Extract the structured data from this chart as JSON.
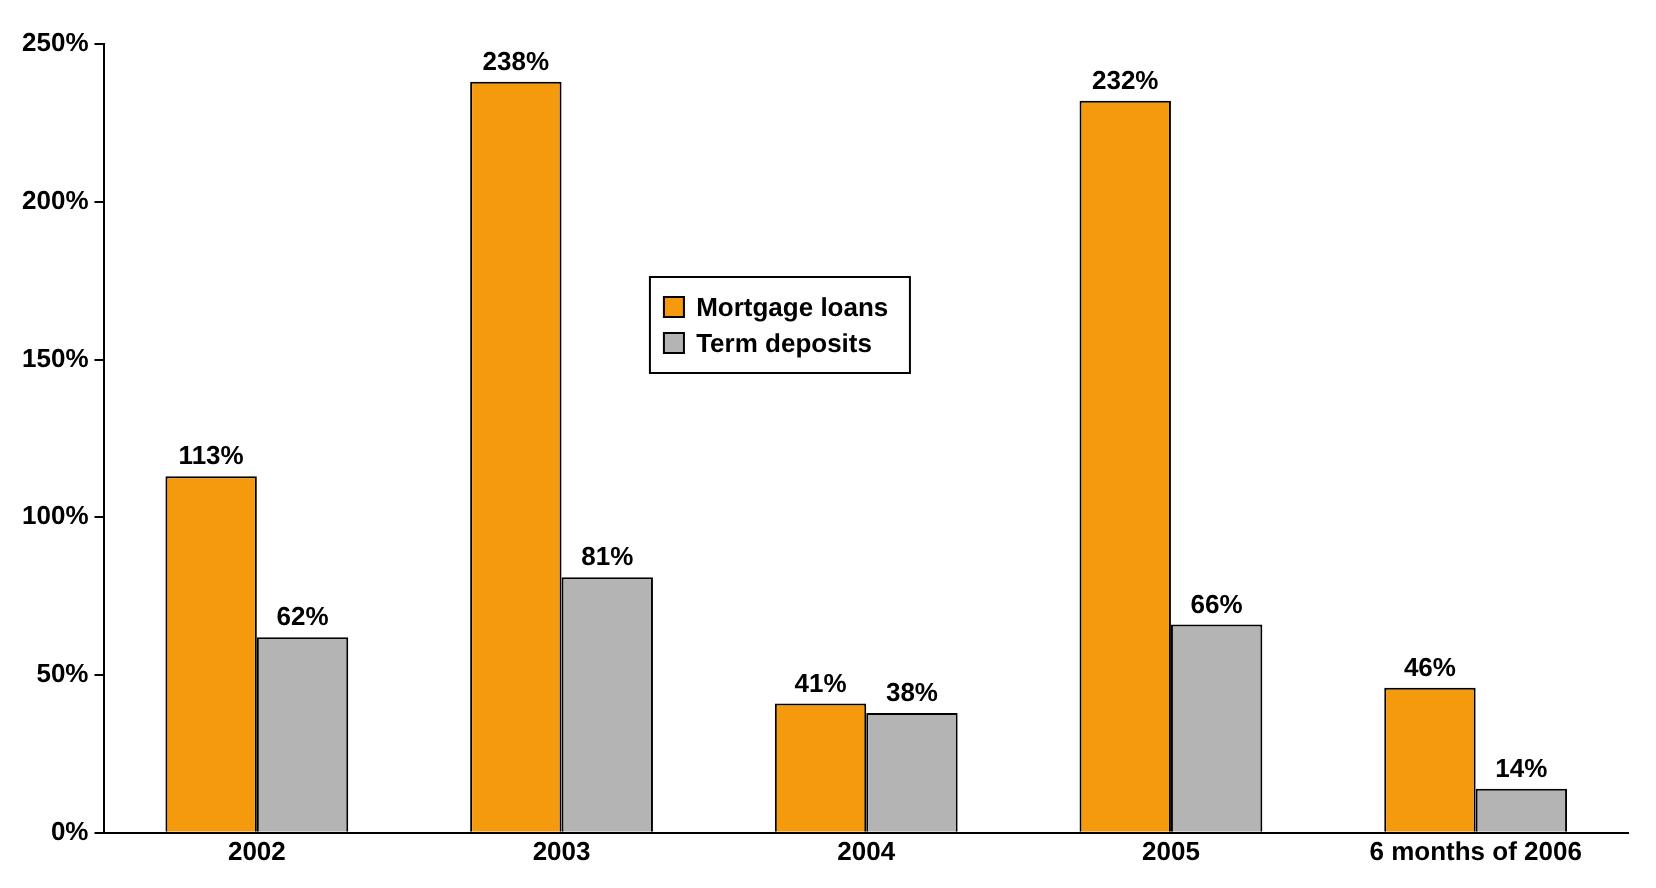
{
  "chart_data": {
    "type": "bar",
    "categories": [
      "2002",
      "2003",
      "2004",
      "2005",
      "6 months of 2006"
    ],
    "series": [
      {
        "name": "Mortgage loans",
        "color": "#f59a0c",
        "values": [
          113,
          238,
          41,
          232,
          46
        ],
        "value_labels": [
          "113%",
          "238%",
          "41%",
          "232%",
          "46%"
        ]
      },
      {
        "name": "Term deposits",
        "color": "#b4b4b4",
        "values": [
          62,
          81,
          38,
          66,
          14
        ],
        "value_labels": [
          "62%",
          "81%",
          "38%",
          "66%",
          "14%"
        ]
      }
    ],
    "ylim": [
      0,
      250
    ],
    "yticks": [
      {
        "value": 0,
        "label": "0%"
      },
      {
        "value": 50,
        "label": "50%"
      },
      {
        "value": 100,
        "label": "100%"
      },
      {
        "value": 150,
        "label": "150%"
      },
      {
        "value": 200,
        "label": "200%"
      },
      {
        "value": 250,
        "label": "250%"
      }
    ],
    "grid": false,
    "legend": "top center"
  }
}
